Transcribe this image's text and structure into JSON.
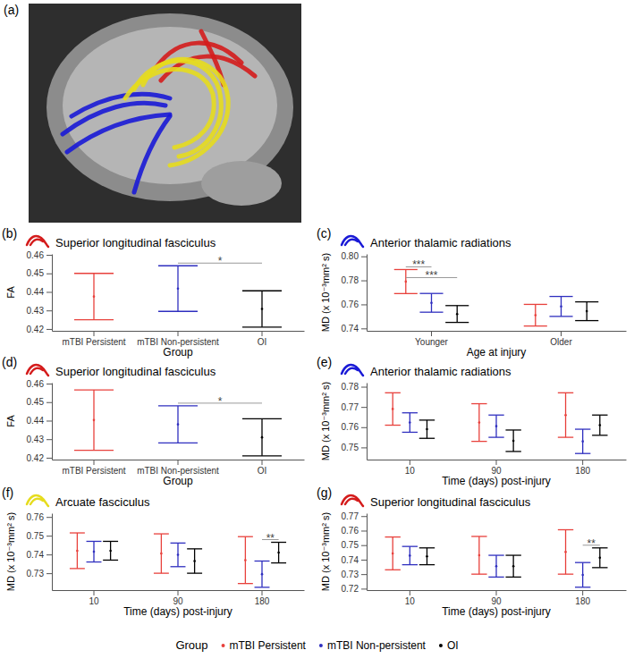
{
  "panel_a": {
    "label": "(a)"
  },
  "legend_title": "Group",
  "chart_data": [
    {
      "type": "errorbar",
      "panel": "(b)",
      "title": "Superior longitudinal fasciculus",
      "color": "#d41c1c",
      "x_label": "Group",
      "y_label": "FA",
      "categories": [
        "mTBI Persistent",
        "mTBI Non-persistent",
        "OI"
      ],
      "values": [
        0.4375,
        0.4418,
        0.4308
      ],
      "errors": [
        0.0125,
        0.0123,
        0.0098
      ],
      "colors": [
        "#e8413c",
        "#2f2fbf",
        "#000000"
      ],
      "ylim": [
        0.419,
        0.4605
      ],
      "yticks": [
        0.42,
        0.43,
        0.44,
        0.45,
        0.46
      ],
      "annotations": [
        {
          "text": "*",
          "between": [
            "mTBI Non-persistent",
            "OI"
          ]
        }
      ]
    },
    {
      "type": "errorbar",
      "panel": "(c)",
      "title": "Anterior thalamic radiations",
      "color": "#1a1ad6",
      "x_label": "Age at injury",
      "y_label": "MD (x 10⁻³mm² s)",
      "categories": [
        "Younger",
        "Older"
      ],
      "series": [
        {
          "name": "mTBI Persistent",
          "color": "#e8413c",
          "values": [
            0.779,
            0.751
          ],
          "errors": [
            0.01,
            0.009
          ]
        },
        {
          "name": "mTBI Non-persistent",
          "color": "#2f2fbf",
          "values": [
            0.7613,
            0.7583
          ],
          "errors": [
            0.0078,
            0.0083
          ]
        },
        {
          "name": "OI",
          "color": "#000000",
          "values": [
            0.752,
            0.7543
          ],
          "errors": [
            0.007,
            0.0078
          ]
        }
      ],
      "ylim": [
        0.738,
        0.802
      ],
      "yticks": [
        0.74,
        0.76,
        0.78,
        {
          "value": 0.8,
          "label": "0.80"
        }
      ],
      "annotations": [
        {
          "text": "***",
          "category": "Younger",
          "between": [
            "mTBI Persistent",
            "mTBI Non-persistent"
          ]
        },
        {
          "text": "***",
          "category": "Younger",
          "between": [
            "mTBI Persistent",
            "OI"
          ]
        }
      ]
    },
    {
      "type": "errorbar",
      "panel": "(d)",
      "title": "Superior longitudinal fasciculus",
      "color": "#d41c1c",
      "x_label": "Group",
      "y_label": "FA",
      "categories": [
        "mTBI Persistent",
        "mTBI Non-persistent",
        "OI"
      ],
      "values": [
        0.4403,
        0.438,
        0.431
      ],
      "errors": [
        0.0163,
        0.01,
        0.01
      ],
      "colors": [
        "#e8413c",
        "#2f2fbf",
        "#000000"
      ],
      "ylim": [
        0.419,
        0.4605
      ],
      "yticks": [
        0.42,
        0.43,
        0.44,
        0.45,
        0.46
      ],
      "annotations": [
        {
          "text": "*",
          "between": [
            "mTBI Non-persistent",
            "OI"
          ]
        }
      ]
    },
    {
      "type": "errorbar",
      "panel": "(e)",
      "title": "Anterior thalamic radiations",
      "color": "#1a1ad6",
      "x_label": "Time (days) post-injury",
      "y_label": "MD (x 10⁻³mm² s)",
      "categories": [
        "10",
        "90",
        "180"
      ],
      "series": [
        {
          "name": "mTBI Persistent",
          "color": "#e8413c",
          "values": [
            0.769,
            0.7623,
            0.766
          ],
          "errors": [
            0.008,
            0.0093,
            0.011
          ]
        },
        {
          "name": "mTBI Non-persistent",
          "color": "#2f2fbf",
          "values": [
            0.7623,
            0.7605,
            0.753
          ],
          "errors": [
            0.0048,
            0.0055,
            0.006
          ]
        },
        {
          "name": "OI",
          "color": "#000000",
          "values": [
            0.759,
            0.7533,
            0.761
          ],
          "errors": [
            0.0045,
            0.0053,
            0.005
          ]
        }
      ],
      "ylim": [
        0.744,
        0.782
      ],
      "yticks": [
        0.75,
        0.76,
        0.77,
        0.78
      ],
      "annotations": []
    },
    {
      "type": "errorbar",
      "panel": "(f)",
      "title": "Arcuate fasciculus",
      "color": "#e6dc1e",
      "x_label": "Time (days) post-injury",
      "y_label": "MD (x 10⁻³mm² s)",
      "categories": [
        "10",
        "90",
        "180"
      ],
      "series": [
        {
          "name": "mTBI Persistent",
          "color": "#e8413c",
          "values": [
            0.742,
            0.7405,
            0.737
          ],
          "errors": [
            0.0095,
            0.0105,
            0.0125
          ]
        },
        {
          "name": "mTBI Non-persistent",
          "color": "#2f2fbf",
          "values": [
            0.7415,
            0.7398,
            0.7295
          ],
          "errors": [
            0.0055,
            0.0063,
            0.007
          ]
        },
        {
          "name": "OI",
          "color": "#000000",
          "values": [
            0.742,
            0.7365,
            0.741
          ],
          "errors": [
            0.005,
            0.0065,
            0.0055
          ]
        }
      ],
      "ylim": [
        0.721,
        0.762
      ],
      "yticks": [
        0.73,
        0.74,
        0.75,
        0.76
      ],
      "annotations": [
        {
          "text": "**",
          "category": "180",
          "between": [
            "mTBI Non-persistent",
            "OI"
          ]
        }
      ]
    },
    {
      "type": "errorbar",
      "panel": "(g)",
      "title": "Superior longitudinal fasciculus",
      "color": "#d41c1c",
      "x_label": "Time (days) post-injury",
      "y_label": "MD (x 10⁻³mm² s)",
      "categories": [
        "10",
        "90",
        "180"
      ],
      "series": [
        {
          "name": "mTBI Persistent",
          "color": "#e8413c",
          "values": [
            0.7443,
            0.743,
            0.7453
          ],
          "errors": [
            0.0113,
            0.013,
            0.0153
          ]
        },
        {
          "name": "mTBI Non-persistent",
          "color": "#2f2fbf",
          "values": [
            0.7428,
            0.7355,
            0.7295
          ],
          "errors": [
            0.0063,
            0.0075,
            0.0085
          ]
        },
        {
          "name": "OI",
          "color": "#000000",
          "values": [
            0.7423,
            0.7355,
            0.7413
          ],
          "errors": [
            0.0058,
            0.0075,
            0.0068
          ]
        }
      ],
      "ylim": [
        0.719,
        0.772
      ],
      "yticks": [
        0.72,
        0.73,
        0.74,
        0.75,
        0.76,
        0.77
      ],
      "annotations": [
        {
          "text": "**",
          "category": "180",
          "between": [
            "mTBI Non-persistent",
            "OI"
          ]
        }
      ]
    }
  ]
}
